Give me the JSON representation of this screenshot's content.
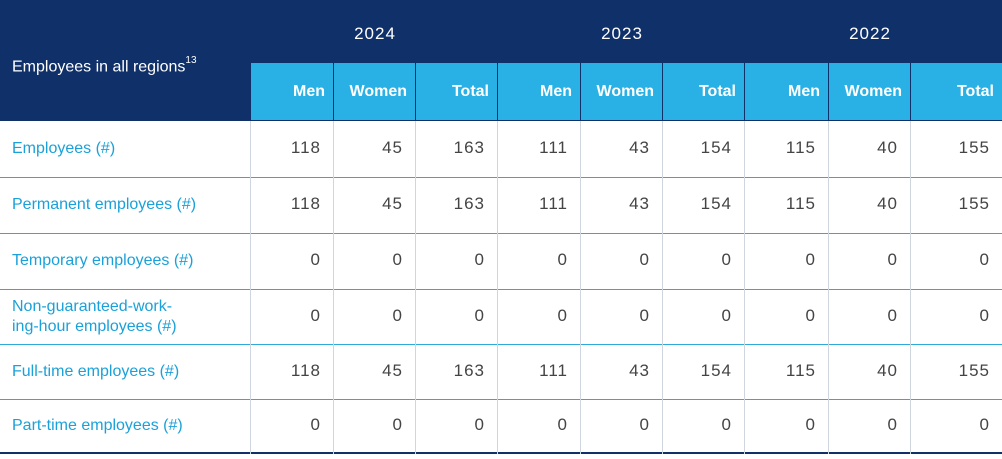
{
  "table": {
    "title": "Employees in all regions",
    "title_superscript": "13",
    "years": [
      "2024",
      "2023",
      "2022"
    ],
    "subheaders": [
      "Men",
      "Women",
      "Total",
      "Men",
      "Women",
      "Total",
      "Men",
      "Women",
      "Total"
    ],
    "rows": [
      {
        "label": [
          "Employees (#)"
        ],
        "values": [
          "118",
          "45",
          "163",
          "111",
          "43",
          "154",
          "115",
          "40",
          "155"
        ]
      },
      {
        "label": [
          "Permanent employees (#)"
        ],
        "values": [
          "118",
          "45",
          "163",
          "111",
          "43",
          "154",
          "115",
          "40",
          "155"
        ]
      },
      {
        "label": [
          "Temporary employees (#)"
        ],
        "values": [
          "0",
          "0",
          "0",
          "0",
          "0",
          "0",
          "0",
          "0",
          "0"
        ]
      },
      {
        "label": [
          "Non-guaranteed-work-",
          "ing-hour employees (#)"
        ],
        "values": [
          "0",
          "0",
          "0",
          "0",
          "0",
          "0",
          "0",
          "0",
          "0"
        ]
      },
      {
        "label": [
          "Full-time employees (#)"
        ],
        "values": [
          "118",
          "45",
          "163",
          "111",
          "43",
          "154",
          "115",
          "40",
          "155"
        ]
      },
      {
        "label": [
          "Part-time employees (#)"
        ],
        "values": [
          "0",
          "0",
          "0",
          "0",
          "0",
          "0",
          "0",
          "0",
          "0"
        ]
      }
    ]
  },
  "colors": {
    "header_navy": "#0f3069",
    "subheader_cyan": "#29b1e6",
    "row_label": "#1aa1d9",
    "cell_text": "#444444"
  }
}
